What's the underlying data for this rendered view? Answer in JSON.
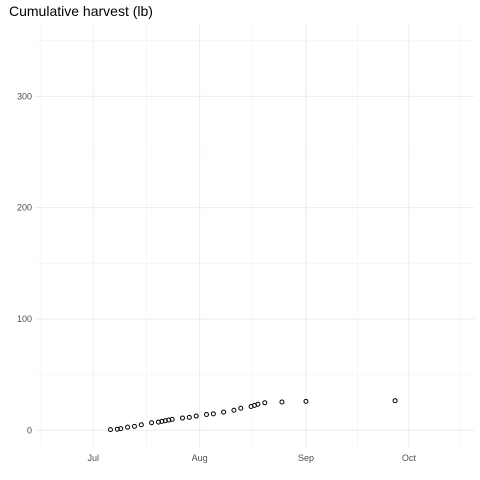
{
  "chart_data": {
    "type": "scatter",
    "title": "Cumulative harvest (lb)",
    "xlabel": "",
    "ylabel": "",
    "x_type": "date",
    "xlim": [
      "2020-06-14",
      "2020-10-20"
    ],
    "ylim": [
      -15,
      365
    ],
    "x_ticks": [
      {
        "date": "2020-07-01",
        "label": "Jul"
      },
      {
        "date": "2020-08-01",
        "label": "Aug"
      },
      {
        "date": "2020-09-01",
        "label": "Sep"
      },
      {
        "date": "2020-10-01",
        "label": "Oct"
      }
    ],
    "y_ticks": [
      0,
      100,
      200,
      300
    ],
    "grid": true,
    "legend": "none",
    "series": [
      {
        "x": [
          "2020-07-06",
          "2020-07-08",
          "2020-07-09",
          "2020-07-11",
          "2020-07-13",
          "2020-07-15",
          "2020-07-18",
          "2020-07-20",
          "2020-07-21",
          "2020-07-22",
          "2020-07-23",
          "2020-07-24",
          "2020-07-27",
          "2020-07-29",
          "2020-07-31",
          "2020-08-03",
          "2020-08-05",
          "2020-08-08",
          "2020-08-11",
          "2020-08-13",
          "2020-08-16",
          "2020-08-17",
          "2020-08-18",
          "2020-08-20",
          "2020-08-25",
          "2020-09-01",
          "2020-09-27"
        ],
        "y": [
          0.6,
          1.0,
          1.5,
          2.8,
          3.5,
          5.0,
          6.8,
          7.4,
          8.0,
          8.6,
          9.2,
          9.8,
          11.0,
          11.6,
          12.8,
          14.2,
          14.8,
          16.3,
          18.0,
          19.8,
          21.4,
          22.4,
          23.4,
          24.7,
          25.4,
          26.0,
          26.6
        ]
      }
    ]
  }
}
